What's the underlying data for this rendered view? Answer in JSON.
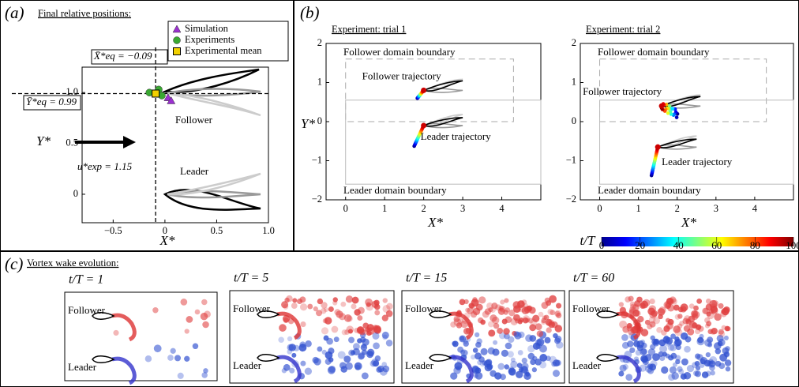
{
  "panel_a": {
    "label": "(a)",
    "title": "Final relative positions:",
    "x_label": "X*",
    "y_label": "Y*",
    "xlim": [
      -0.8,
      1.0
    ],
    "ylim": [
      -0.28,
      1.25
    ],
    "xticks": [
      {
        "value": -0.5,
        "label": "−0.5"
      },
      0,
      0.5,
      {
        "value": 1,
        "label": "1.0"
      }
    ],
    "yticks": [
      0,
      0.5,
      {
        "value": 1,
        "label": "1.0"
      }
    ],
    "x_eq": -0.09,
    "y_eq": 0.99,
    "x_eq_label": "X̄*eq = −0.09",
    "y_eq_label": "Ȳ*eq = 0.99",
    "flow_label": "u*exp = 1.15",
    "follower_label": "Follower",
    "leader_label": "Leader",
    "points": [
      {
        "name": "Simulation",
        "color": "#9b30d0",
        "marker": "triangle",
        "x": [
          0.03,
          0.06
        ],
        "y": [
          0.95,
          0.92
        ]
      },
      {
        "name": "Experiments",
        "color": "#3aa832",
        "marker": "circle",
        "x": [
          -0.15,
          -0.06,
          -0.03
        ],
        "y": [
          1.0,
          1.03,
          0.97
        ]
      },
      {
        "name": "Experimental mean",
        "color": "#f2d100",
        "marker": "square",
        "x": [
          -0.09
        ],
        "y": [
          0.99
        ]
      }
    ]
  },
  "panel_b": {
    "label": "(b)",
    "y_label": "Y*",
    "plots": [
      {
        "title": "Experiment: trial 1",
        "x_label": "X*",
        "xlim": [
          -0.5,
          5
        ],
        "ylim": [
          -2,
          2
        ],
        "xticks": [
          0,
          1,
          2,
          3,
          4
        ],
        "yticks": [
          {
            "value": -2,
            "label": "−2"
          },
          {
            "value": -1,
            "label": "−1"
          },
          0,
          1,
          2
        ],
        "follower_domain": "Follower domain boundary",
        "follower_trajectory": "Follower trajectory",
        "leader_trajectory": "Leader trajectory",
        "leader_domain": "Leader domain boundary"
      },
      {
        "title": "Experiment: trial 2",
        "x_label": "X*",
        "xlim": [
          -0.5,
          5
        ],
        "ylim": [
          -2,
          2
        ],
        "xticks": [
          0,
          1,
          2,
          3,
          4
        ],
        "yticks": [
          {
            "value": -2,
            "label": "−2"
          },
          {
            "value": -1,
            "label": "−1"
          },
          0,
          1,
          2
        ],
        "follower_domain": "Follower domain boundary",
        "follower_trajectory": "Follower trajectory",
        "leader_trajectory": "Leader trajectory",
        "leader_domain": "Leader domain boundary"
      }
    ],
    "colorbar": {
      "label": "t/T",
      "lim": [
        0,
        100
      ],
      "ticks": [
        0,
        20,
        40,
        60,
        80,
        100
      ]
    }
  },
  "panel_c": {
    "label": "(c)",
    "title": "Vortex wake evolution:",
    "frames": [
      {
        "title": "t/T = 1",
        "follower": "Follower",
        "leader": "Leader"
      },
      {
        "title": "t/T = 5",
        "follower": "Follower",
        "leader": "Leader"
      },
      {
        "title": "t/T = 15",
        "follower": "Follower",
        "leader": "Leader"
      },
      {
        "title": "t/T = 60",
        "follower": "Follower",
        "leader": "Leader"
      }
    ]
  }
}
